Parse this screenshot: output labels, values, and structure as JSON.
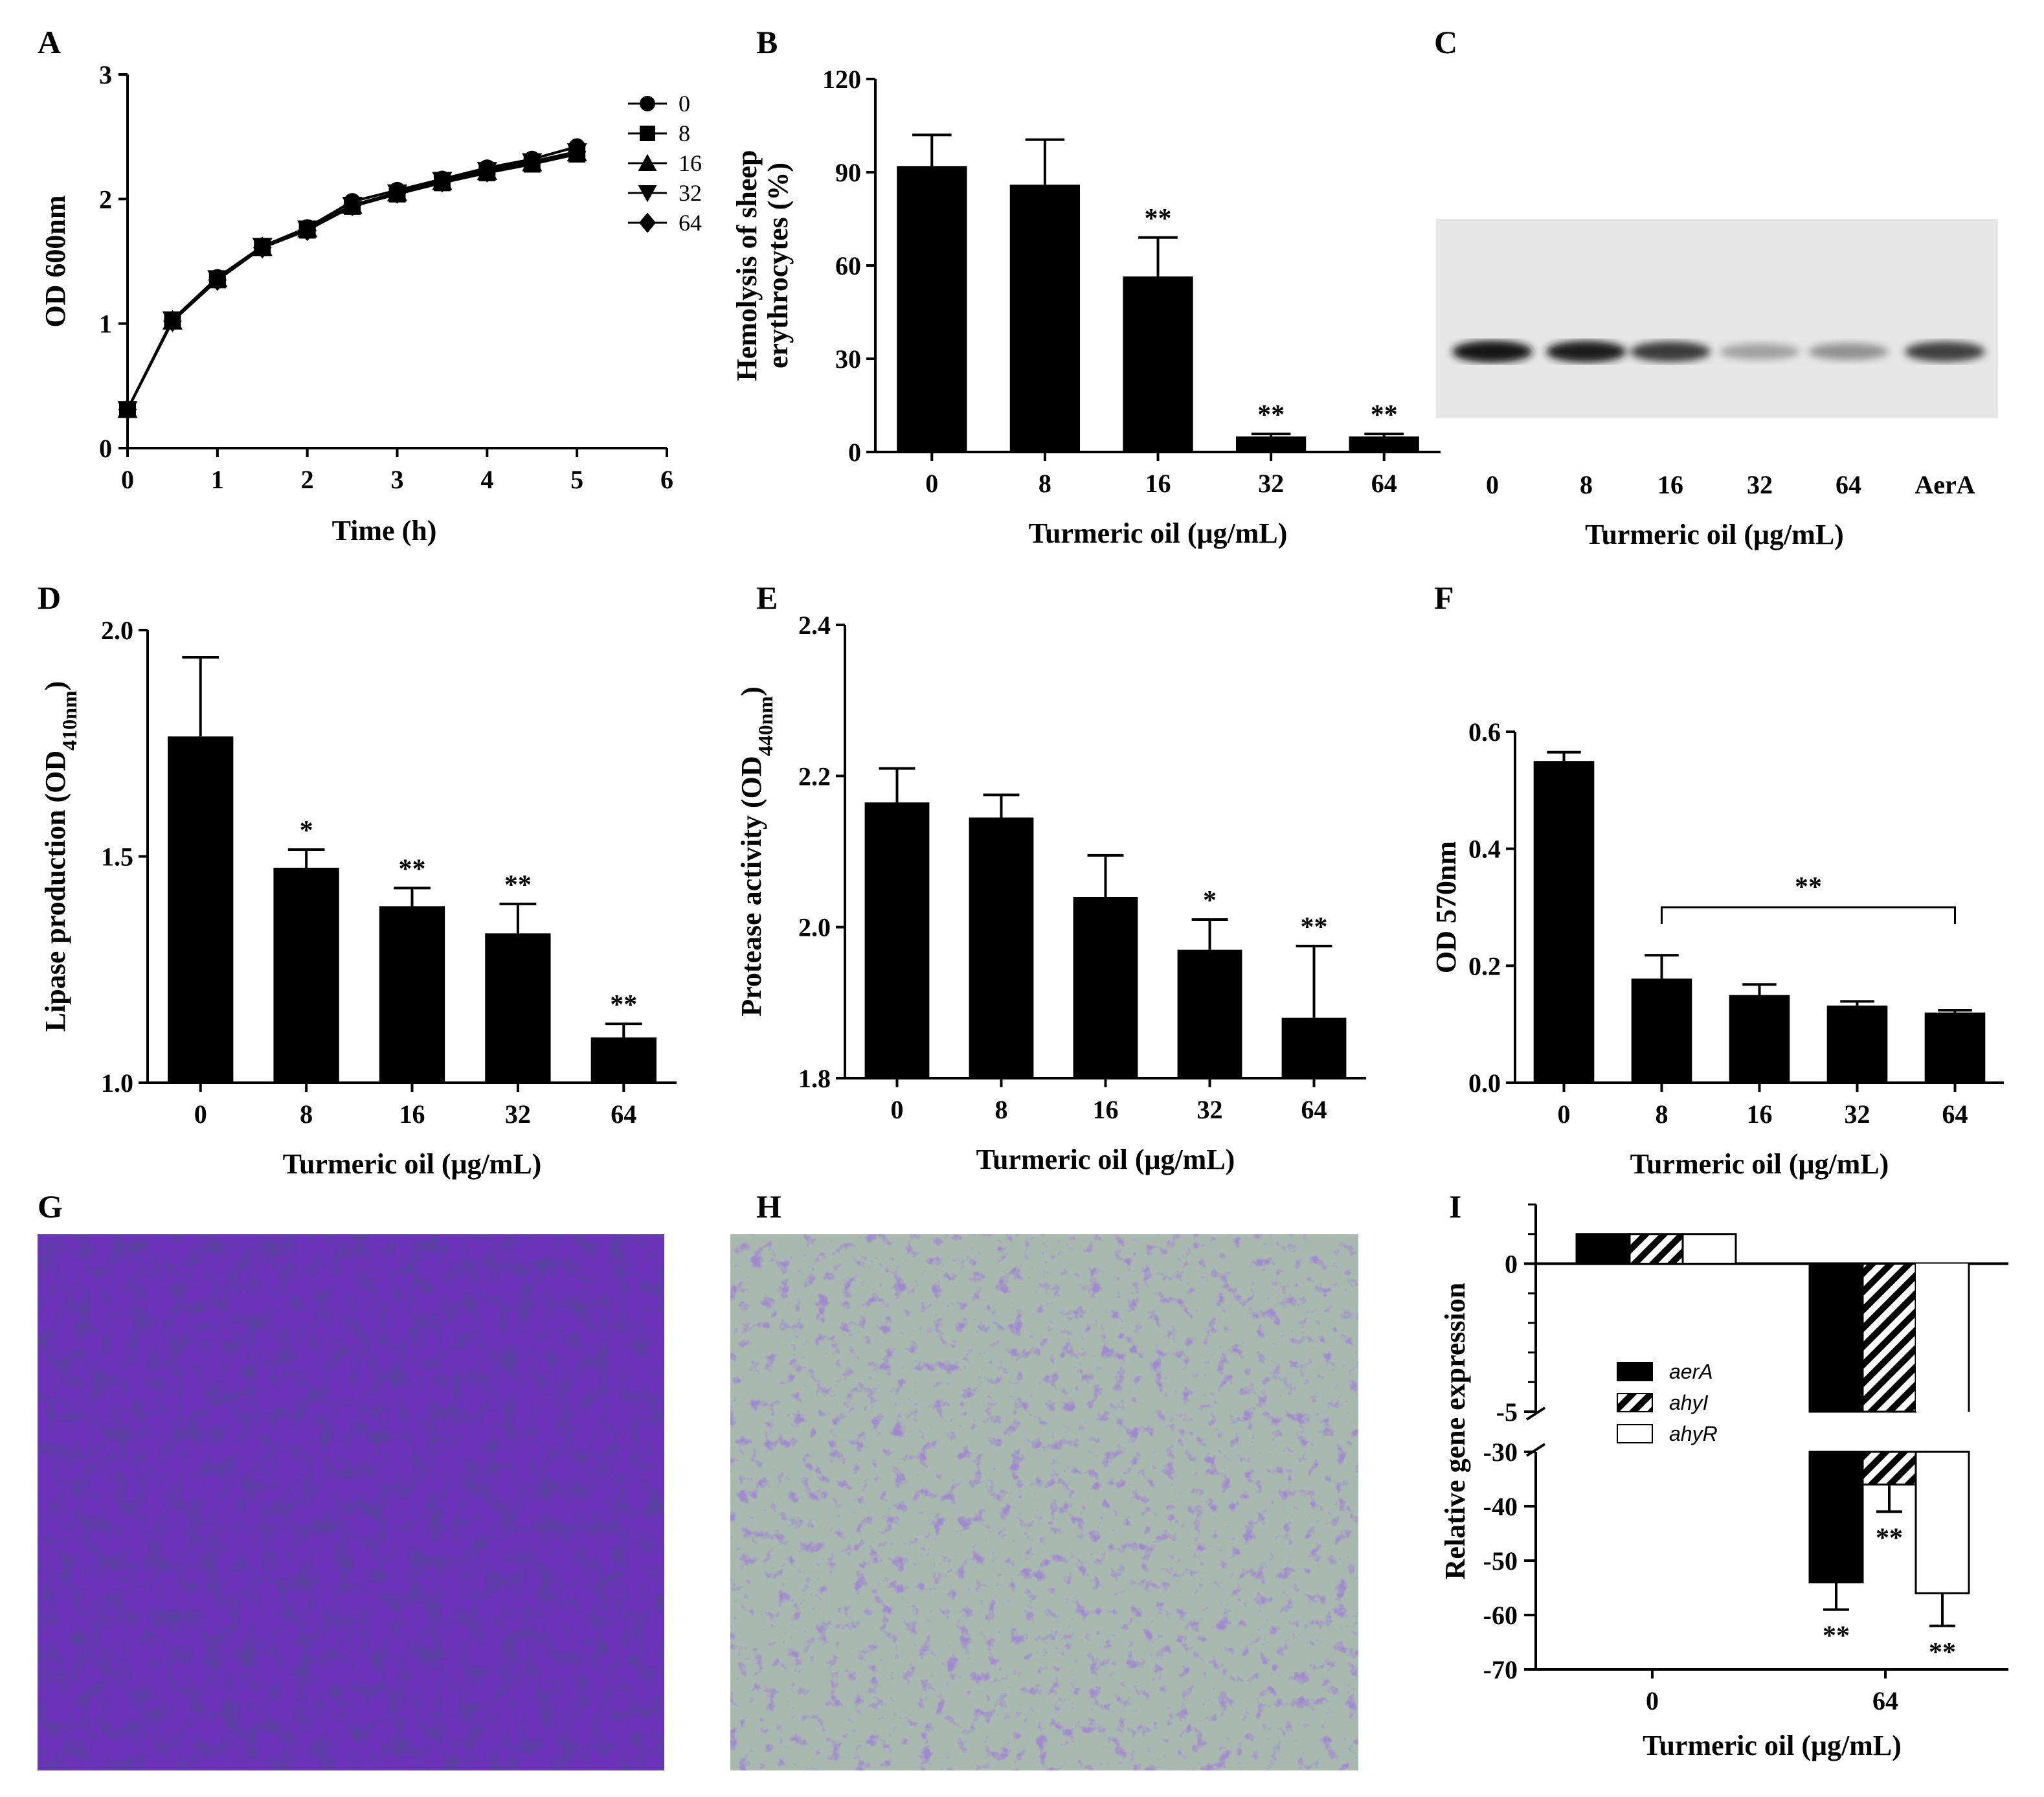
{
  "panels": {
    "A": {
      "letter": "A"
    },
    "B": {
      "letter": "B"
    },
    "C": {
      "letter": "C"
    },
    "D": {
      "letter": "D"
    },
    "E": {
      "letter": "E"
    },
    "F": {
      "letter": "F"
    },
    "G": {
      "letter": "G"
    },
    "H": {
      "letter": "H"
    },
    "I": {
      "letter": "I"
    }
  },
  "blot": {
    "lane_labels": [
      "0",
      "8",
      "16",
      "32",
      "64",
      "AerA"
    ],
    "band_intensity": [
      1.0,
      0.95,
      0.82,
      0.35,
      0.42,
      0.8
    ],
    "xlabel": "Turmeric oil (μg/mL)"
  },
  "micrographs": {
    "G": {
      "background": "#6a33b8"
    },
    "H": {
      "background": "#a9b9b0"
    }
  },
  "chart_data": [
    {
      "panel": "A",
      "type": "line",
      "xlabel": "Time (h)",
      "ylabel": "OD 600nm",
      "xlim": [
        0,
        6
      ],
      "ylim": [
        0,
        3
      ],
      "xticks": [
        "0",
        "1",
        "2",
        "3",
        "4",
        "5",
        "6"
      ],
      "yticks": [
        "0",
        "1",
        "2",
        "3"
      ],
      "x": [
        0,
        0.5,
        1,
        1.5,
        2,
        2.5,
        3,
        3.5,
        4,
        4.5,
        5
      ],
      "series": [
        {
          "name": "0",
          "marker": "circle",
          "values": [
            0.31,
            1.03,
            1.37,
            1.62,
            1.77,
            1.98,
            2.07,
            2.16,
            2.25,
            2.32,
            2.42
          ]
        },
        {
          "name": "8",
          "marker": "square",
          "values": [
            0.31,
            1.02,
            1.35,
            1.61,
            1.75,
            1.94,
            2.04,
            2.13,
            2.21,
            2.28,
            2.36
          ]
        },
        {
          "name": "16",
          "marker": "triangle-up",
          "values": [
            0.31,
            1.02,
            1.36,
            1.61,
            1.76,
            1.95,
            2.05,
            2.14,
            2.22,
            2.29,
            2.37
          ]
        },
        {
          "name": "32",
          "marker": "triangle-down",
          "values": [
            0.31,
            1.03,
            1.36,
            1.62,
            1.76,
            1.95,
            2.05,
            2.15,
            2.23,
            2.3,
            2.38
          ]
        },
        {
          "name": "64",
          "marker": "diamond",
          "values": [
            0.31,
            1.02,
            1.35,
            1.61,
            1.75,
            1.95,
            2.05,
            2.14,
            2.22,
            2.3,
            2.38
          ]
        }
      ],
      "legend_position": "right"
    },
    {
      "panel": "B",
      "type": "bar",
      "xlabel": "Turmeric oil (μg/mL)",
      "ylabel": [
        "Hemolysis of sheep",
        "erythrocytes (%)"
      ],
      "categories": [
        "0",
        "8",
        "16",
        "32",
        "64"
      ],
      "values": [
        92,
        86,
        56.5,
        5,
        5
      ],
      "errors": [
        10,
        14.5,
        12.5,
        0.8,
        0.8
      ],
      "significance": [
        "",
        "",
        "**",
        "**",
        "**"
      ],
      "ylim": [
        0,
        120
      ],
      "yticks": [
        "0",
        "30",
        "60",
        "90",
        "120"
      ]
    },
    {
      "panel": "D",
      "type": "bar",
      "xlabel": "Turmeric oil (μg/mL)",
      "ylabel": "Lipase production (OD",
      "ylabel_sub": "410nm",
      "ylabel_end": ")",
      "categories": [
        "0",
        "8",
        "16",
        "32",
        "64"
      ],
      "values": [
        1.765,
        1.475,
        1.39,
        1.33,
        1.1
      ],
      "errors": [
        0.175,
        0.04,
        0.04,
        0.065,
        0.03
      ],
      "significance": [
        "",
        "*",
        "**",
        "**",
        "**"
      ],
      "ylim": [
        1.0,
        2.0
      ],
      "yticks": [
        "1.0",
        "1.5",
        "2.0"
      ]
    },
    {
      "panel": "E",
      "type": "bar",
      "xlabel": "Turmeric oil (μg/mL)",
      "ylabel": "Protease activity (OD",
      "ylabel_sub": "440nm",
      "ylabel_end": ")",
      "categories": [
        "0",
        "8",
        "16",
        "32",
        "64"
      ],
      "values": [
        2.165,
        2.145,
        2.04,
        1.97,
        1.88
      ],
      "errors": [
        0.045,
        0.03,
        0.055,
        0.04,
        0.095
      ],
      "significance": [
        "",
        "",
        "",
        "*",
        "**"
      ],
      "ylim": [
        1.8,
        2.4
      ],
      "yticks": [
        "1.8",
        "2.0",
        "2.2",
        "2.4"
      ]
    },
    {
      "panel": "F",
      "type": "bar",
      "xlabel": "Turmeric oil (μg/mL)",
      "ylabel": "OD 570nm",
      "categories": [
        "0",
        "8",
        "16",
        "32",
        "64"
      ],
      "values": [
        0.55,
        0.178,
        0.15,
        0.132,
        0.12
      ],
      "errors": [
        0.015,
        0.04,
        0.018,
        0.007,
        0.004
      ],
      "significance_bracket": {
        "from": "8",
        "to": "64",
        "label": "**"
      },
      "ylim": [
        0,
        0.6
      ],
      "yticks": [
        "0.0",
        "0.2",
        "0.4",
        "0.6"
      ]
    },
    {
      "panel": "I",
      "type": "bar",
      "xlabel": "Turmeric oil (μg/mL)",
      "ylabel": "Relative gene expression",
      "categories": [
        "0",
        "64"
      ],
      "broken_axis": true,
      "upper_ylim": [
        -5,
        2
      ],
      "lower_ylim": [
        -70,
        -30
      ],
      "upper_yticks": [
        "0",
        "-5"
      ],
      "lower_yticks": [
        "-30",
        "-40",
        "-50",
        "-60",
        "-70"
      ],
      "series": [
        {
          "name": "aerA",
          "fill": "black",
          "values": [
            1,
            -54
          ],
          "errors": [
            0,
            5
          ]
        },
        {
          "name": "ahyI",
          "fill": "hatched",
          "values": [
            1,
            -36
          ],
          "errors": [
            0,
            5
          ]
        },
        {
          "name": "ahyR",
          "fill": "white",
          "values": [
            1,
            -56
          ],
          "errors": [
            0,
            6
          ]
        }
      ],
      "significance": [
        "",
        "**"
      ]
    }
  ]
}
